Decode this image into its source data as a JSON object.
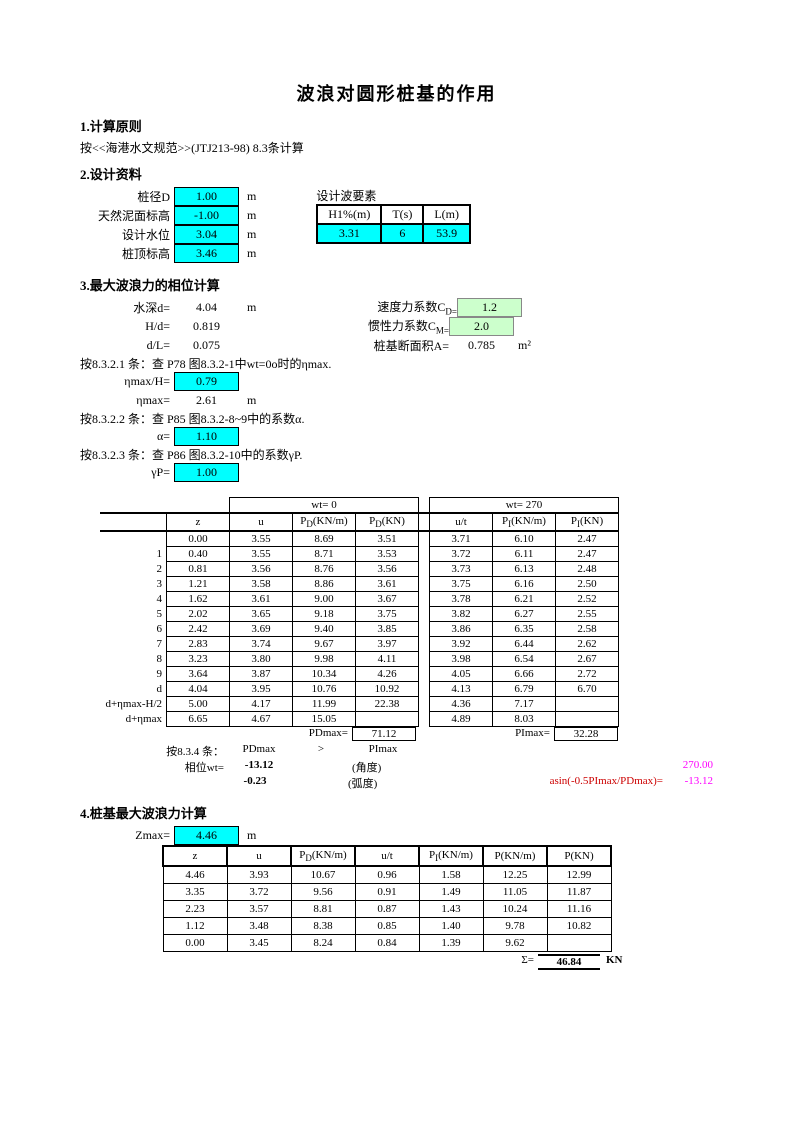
{
  "title": "波浪对圆形桩基的作用",
  "s1": {
    "h": "1.计算原则",
    "txt": "按<<海港水文规范>>(JTJ213-98) 8.3条计算"
  },
  "s2": {
    "h": "2.设计资料",
    "rows": [
      {
        "l": "桩径D",
        "v": "1.00",
        "u": "m"
      },
      {
        "l": "天然泥面标高",
        "v": "-1.00",
        "u": "m"
      },
      {
        "l": "设计水位",
        "v": "3.04",
        "u": "m"
      },
      {
        "l": "桩顶标高",
        "v": "3.46",
        "u": "m"
      }
    ],
    "wave_h": "设计波要素",
    "wave_cols": [
      "H1%(m)",
      "T(s)",
      "L(m)"
    ],
    "wave_vals": [
      "3.31",
      "6",
      "53.9"
    ]
  },
  "s3": {
    "h": "3.最大波浪力的相位计算",
    "left": [
      {
        "l": "水深d=",
        "v": "4.04",
        "u": "m"
      },
      {
        "l": "H/d=",
        "v": "0.819",
        "u": ""
      },
      {
        "l": "d/L=",
        "v": "0.075",
        "u": ""
      }
    ],
    "right": [
      {
        "l": "速度力系数C",
        "sub": "D=",
        "v": "1.2",
        "cls": "green"
      },
      {
        "l": "惯性力系数C",
        "sub": "M=",
        "v": "2.0",
        "cls": "green"
      },
      {
        "l": "桩基断面积A=",
        "sub": "",
        "v": "0.785",
        "cls": "",
        "u": "m²"
      }
    ],
    "note1": "按8.3.2.1 条：查 P78 图8.3.2-1中wt=0o时的ηmax.",
    "eta_l": "ηmax/H=",
    "eta_v": "0.79",
    "eta2_l": "ηmax=",
    "eta2_v": "2.61",
    "eta2_u": "m",
    "note2": "按8.3.2.2 条：查 P85 图8.3.2-8~9中的系数α.",
    "alpha_l": "α=",
    "alpha_v": "1.10",
    "note3": "按8.3.2.3 条：查 P86 图8.3.2-10中的系数γP.",
    "gp_l": "γP=",
    "gp_v": "1.00"
  },
  "tbl": {
    "wt0": "wt=   0",
    "wt270": "wt=   270",
    "cols": [
      "z",
      "u",
      "P_D(KN/m)",
      "P_D(KN)",
      "u/t",
      "P_I(KN/m)",
      "P_I(KN)"
    ],
    "rowlabels": [
      "",
      "1",
      "2",
      "3",
      "4",
      "5",
      "6",
      "7",
      "8",
      "9",
      "d",
      "d+ηmax-H/2",
      "d+ηmax"
    ],
    "rows": [
      [
        "0.00",
        "3.55",
        "8.69",
        "3.51",
        "3.71",
        "6.10",
        "2.47"
      ],
      [
        "0.40",
        "3.55",
        "8.71",
        "3.53",
        "3.72",
        "6.11",
        "2.47"
      ],
      [
        "0.81",
        "3.56",
        "8.76",
        "3.56",
        "3.73",
        "6.13",
        "2.48"
      ],
      [
        "1.21",
        "3.58",
        "8.86",
        "3.61",
        "3.75",
        "6.16",
        "2.50"
      ],
      [
        "1.62",
        "3.61",
        "9.00",
        "3.67",
        "3.78",
        "6.21",
        "2.52"
      ],
      [
        "2.02",
        "3.65",
        "9.18",
        "3.75",
        "3.82",
        "6.27",
        "2.55"
      ],
      [
        "2.42",
        "3.69",
        "9.40",
        "3.85",
        "3.86",
        "6.35",
        "2.58"
      ],
      [
        "2.83",
        "3.74",
        "9.67",
        "3.97",
        "3.92",
        "6.44",
        "2.62"
      ],
      [
        "3.23",
        "3.80",
        "9.98",
        "4.11",
        "3.98",
        "6.54",
        "2.67"
      ],
      [
        "3.64",
        "3.87",
        "10.34",
        "4.26",
        "4.05",
        "6.66",
        "2.72"
      ],
      [
        "4.04",
        "3.95",
        "10.76",
        "10.92",
        "4.13",
        "6.79",
        "6.70"
      ],
      [
        "5.00",
        "4.17",
        "11.99",
        "22.38",
        "4.36",
        "7.17",
        ""
      ],
      [
        "6.65",
        "4.67",
        "15.05",
        "",
        "4.89",
        "8.03",
        ""
      ]
    ],
    "pdmax_l": "PDmax=",
    "pdmax_v": "71.12",
    "pimax_l": "PImax=",
    "pimax_v": "32.28",
    "cond_txt": "按8.3.4 条：",
    "cond_pd": "PDmax",
    "cond_gt": ">",
    "cond_pi": "PImax",
    "phase_l": "相位wt=",
    "phase_deg": "-13.12",
    "deg_u": "(角度)",
    "phase_rad": "-0.23",
    "rad_u": "(弧度)",
    "asin_l": "asin(-0.5PImax/PDmax)=",
    "asin_deg": "270.00",
    "asin_rad": "-13.12"
  },
  "s4": {
    "h": "4.桩基最大波浪力计算",
    "zmax_l": "Zmax=",
    "zmax_v": "4.46",
    "zmax_u": "m",
    "cols": [
      "z",
      "u",
      "P_D(KN/m)",
      "u/t",
      "P_I(KN/m)",
      "P(KN/m)",
      "P(KN)"
    ],
    "rows": [
      [
        "4.46",
        "3.93",
        "10.67",
        "0.96",
        "1.58",
        "12.25",
        "12.99"
      ],
      [
        "3.35",
        "3.72",
        "9.56",
        "0.91",
        "1.49",
        "11.05",
        "11.87"
      ],
      [
        "2.23",
        "3.57",
        "8.81",
        "0.87",
        "1.43",
        "10.24",
        "11.16"
      ],
      [
        "1.12",
        "3.48",
        "8.38",
        "0.85",
        "1.40",
        "9.78",
        "10.82"
      ],
      [
        "0.00",
        "3.45",
        "8.24",
        "0.84",
        "1.39",
        "9.62",
        ""
      ]
    ],
    "sum_l": "Σ=",
    "sum_v": "46.84",
    "sum_u": "KN"
  }
}
